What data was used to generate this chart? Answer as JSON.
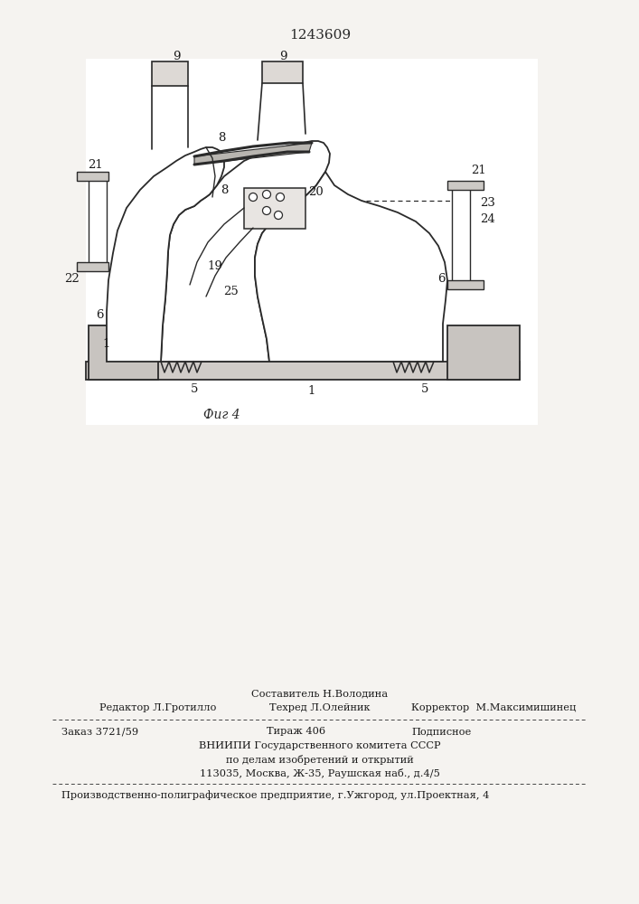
{
  "patent_number": "1243609",
  "fig_label": "Фиг 4",
  "background_color": "#f5f3f0",
  "line_color": "#2a2a2a",
  "footer": {
    "line1_center_top": "Составитель Н.Володина",
    "line1_left": "Редактор Л.Гротилло",
    "line1_center": "Техред Л.Олейник",
    "line1_right": "Корректор  М.Максимишинец",
    "line2_left": "Заказ 3721/59",
    "line2_center": "Тираж 406",
    "line2_right": "Подписное",
    "line3": "ВНИИПИ Государственного комитета СССР",
    "line4": "по делам изобретений и открытий",
    "line5": "113035, Москва, Ж-35, Раушская наб., д.4/5",
    "line6": "Производственно-полиграфическое предприятие, г.Ужгород, ул.Проектная, 4"
  }
}
